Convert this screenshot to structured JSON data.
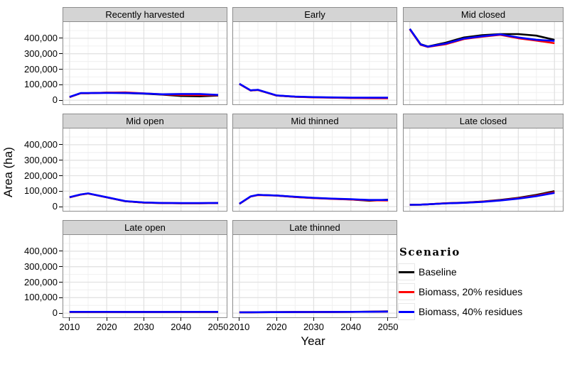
{
  "chart_data": {
    "type": "line",
    "title": "",
    "xlabel": "Year",
    "ylabel": "Area (ha)",
    "x": [
      2010,
      2013,
      2015,
      2020,
      2025,
      2030,
      2035,
      2040,
      2045,
      2050
    ],
    "xlim": [
      2008.3,
      2052.3
    ],
    "ylim": [
      -27000,
      505000
    ],
    "x_ticks": [
      2010,
      2020,
      2030,
      2040,
      2050
    ],
    "x_minor": [
      2015,
      2025,
      2035,
      2045
    ],
    "y_ticks": [
      0,
      100000,
      200000,
      300000,
      400000
    ],
    "y_tick_labels": [
      "0",
      "100,000",
      "200,000",
      "300,000",
      "400,000"
    ],
    "y_minor": [
      50000,
      150000,
      250000,
      350000,
      450000
    ],
    "grid": "on",
    "colors": {
      "strip_bg": "#d4d4d4",
      "panel_border": "#8c8c8c",
      "grid_major": "#e2e2e2",
      "grid_minor": "#f0f0f0",
      "baseline": "#000000",
      "residues20": "#ff0000",
      "residues40": "#0000ff"
    },
    "legend": {
      "title": "Scenario",
      "position": "bottom-right",
      "entries": [
        {
          "label": "Baseline",
          "color": "#000000"
        },
        {
          "label": "Biomass, 20% residues",
          "color": "#ff0000"
        },
        {
          "label": "Biomass, 40% residues",
          "color": "#0000ff"
        }
      ]
    },
    "panels": [
      {
        "title": "Recently harvested",
        "series": [
          {
            "name": "Baseline",
            "color": "#000000",
            "values": [
              20000,
              45000,
              45000,
              48000,
              46000,
              42000,
              36000,
              27000,
              25000,
              30000
            ]
          },
          {
            "name": "Biomass, 20% residues",
            "color": "#ff0000",
            "values": [
              20000,
              45000,
              45000,
              48000,
              50000,
              44000,
              37000,
              34000,
              33000,
              32000
            ]
          },
          {
            "name": "Biomass, 40% residues",
            "color": "#0000ff",
            "values": [
              21000,
              46000,
              46000,
              47000,
              47000,
              43000,
              38000,
              40000,
              40000,
              34000
            ]
          }
        ]
      },
      {
        "title": "Early",
        "series": [
          {
            "name": "Baseline",
            "color": "#000000",
            "values": [
              105000,
              63000,
              66000,
              30000,
              22000,
              19000,
              17000,
              15000,
              14000,
              14000
            ]
          },
          {
            "name": "Biomass, 20% residues",
            "color": "#ff0000",
            "values": [
              105000,
              63000,
              66000,
              30000,
              22000,
              18000,
              16000,
              14000,
              13000,
              12000
            ]
          },
          {
            "name": "Biomass, 40% residues",
            "color": "#0000ff",
            "values": [
              106000,
              64000,
              67000,
              31000,
              23000,
              20000,
              18000,
              16000,
              16000,
              16000
            ]
          }
        ]
      },
      {
        "title": "Mid closed",
        "series": [
          {
            "name": "Baseline",
            "color": "#000000",
            "values": [
              460000,
              362000,
              347000,
              372000,
              405000,
              420000,
              427000,
              427000,
              417000,
              390000
            ]
          },
          {
            "name": "Biomass, 20% residues",
            "color": "#ff0000",
            "values": [
              458000,
              358000,
              344000,
              362000,
              395000,
              410000,
              422000,
              400000,
              385000,
              368000
            ]
          },
          {
            "name": "Biomass, 40% residues",
            "color": "#0000ff",
            "values": [
              460000,
              360000,
              346000,
              366000,
              398000,
              413000,
              425000,
              405000,
              390000,
              383000
            ]
          }
        ]
      },
      {
        "title": "Mid open",
        "series": [
          {
            "name": "Baseline",
            "color": "#000000",
            "values": [
              60000,
              78000,
              85000,
              60000,
              35000,
              26000,
              23000,
              22000,
              22000,
              23000
            ]
          },
          {
            "name": "Biomass, 20% residues",
            "color": "#ff0000",
            "values": [
              60000,
              78000,
              85000,
              60000,
              35000,
              26000,
              23000,
              22000,
              22000,
              23000
            ]
          },
          {
            "name": "Biomass, 40% residues",
            "color": "#0000ff",
            "values": [
              61000,
              79000,
              86000,
              61000,
              36000,
              27000,
              24000,
              23000,
              23000,
              24000
            ]
          }
        ]
      },
      {
        "title": "Mid thinned",
        "series": [
          {
            "name": "Baseline",
            "color": "#000000",
            "values": [
              18000,
              65000,
              76000,
              72000,
              63000,
              56000,
              51000,
              47000,
              38000,
              45000
            ]
          },
          {
            "name": "Biomass, 20% residues",
            "color": "#ff0000",
            "values": [
              18000,
              65000,
              75000,
              71000,
              62000,
              55000,
              50000,
              46000,
              41000,
              40000
            ]
          },
          {
            "name": "Biomass, 40% residues",
            "color": "#0000ff",
            "values": [
              19000,
              66000,
              76000,
              72000,
              64000,
              57000,
              52000,
              48000,
              43000,
              43000
            ]
          }
        ]
      },
      {
        "title": "Late closed",
        "series": [
          {
            "name": "Baseline",
            "color": "#000000",
            "values": [
              12000,
              13000,
              15000,
              22000,
              26000,
              33000,
              43000,
              57000,
              76000,
              100000
            ]
          },
          {
            "name": "Biomass, 20% residues",
            "color": "#ff0000",
            "values": [
              12000,
              13000,
              15000,
              22000,
              25000,
              32000,
              41000,
              54000,
              71000,
              94000
            ]
          },
          {
            "name": "Biomass, 40% residues",
            "color": "#0000ff",
            "values": [
              12000,
              13000,
              15000,
              21000,
              25000,
              31000,
              40000,
              52000,
              68000,
              89000
            ]
          }
        ]
      },
      {
        "title": "Late open",
        "series": [
          {
            "name": "Baseline",
            "color": "#000000",
            "values": [
              8000,
              8000,
              8000,
              8000,
              8000,
              8000,
              8000,
              8000,
              8000,
              8000
            ]
          },
          {
            "name": "Biomass, 20% residues",
            "color": "#ff0000",
            "values": [
              8000,
              8000,
              8000,
              8000,
              7500,
              7500,
              7500,
              8000,
              8000,
              8000
            ]
          },
          {
            "name": "Biomass, 40% residues",
            "color": "#0000ff",
            "values": [
              8500,
              8500,
              8500,
              8500,
              8000,
              8000,
              8000,
              8500,
              8500,
              8500
            ]
          }
        ]
      },
      {
        "title": "Late thinned",
        "series": [
          {
            "name": "Baseline",
            "color": "#000000",
            "values": [
              5000,
              5500,
              6000,
              6500,
              7000,
              7500,
              8000,
              8500,
              9500,
              12000
            ]
          },
          {
            "name": "Biomass, 20% residues",
            "color": "#ff0000",
            "values": [
              5000,
              5500,
              6000,
              6500,
              7000,
              7500,
              8000,
              8500,
              9000,
              10000
            ]
          },
          {
            "name": "Biomass, 40% residues",
            "color": "#0000ff",
            "values": [
              5000,
              5500,
              6000,
              6500,
              7000,
              7500,
              8000,
              8500,
              9000,
              10000
            ]
          }
        ]
      }
    ]
  }
}
